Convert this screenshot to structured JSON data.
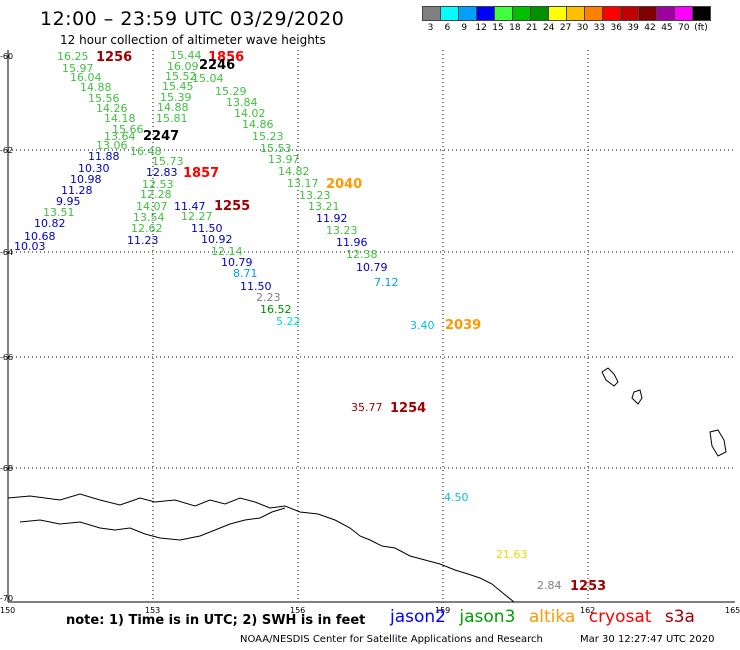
{
  "title": "12:00 – 23:59 UTC 03/29/2020",
  "subtitle": "12 hour collection of altimeter wave heights",
  "legend": {
    "unit": "(ft)",
    "bins": [
      {
        "color": "#808080",
        "label": "3"
      },
      {
        "color": "#00ffff",
        "label": "6"
      },
      {
        "color": "#00a0ff",
        "label": "9"
      },
      {
        "color": "#0000ff",
        "label": "12"
      },
      {
        "color": "#40ff40",
        "label": "15"
      },
      {
        "color": "#00c000",
        "label": "18"
      },
      {
        "color": "#009000",
        "label": "21"
      },
      {
        "color": "#ffff00",
        "label": "24"
      },
      {
        "color": "#ffc000",
        "label": "27"
      },
      {
        "color": "#ff8000",
        "label": "30"
      },
      {
        "color": "#ff0000",
        "label": "33"
      },
      {
        "color": "#c00000",
        "label": "36"
      },
      {
        "color": "#800000",
        "label": "39"
      },
      {
        "color": "#a000a0",
        "label": "42"
      },
      {
        "color": "#ff00ff",
        "label": "45"
      },
      {
        "color": "#000000",
        "label": "70"
      }
    ]
  },
  "axes": {
    "lat_labels": [
      "-60",
      "-62",
      "-64",
      "-66",
      "-68",
      "-70"
    ],
    "lon_labels": [
      "150",
      "153",
      "156",
      "159",
      "162",
      "165"
    ]
  },
  "observations": [
    {
      "v": "16.25",
      "c": "#40c040"
    },
    {
      "v": "15.97",
      "c": "#40c040"
    },
    {
      "v": "16.04",
      "c": "#40c040"
    },
    {
      "v": "14.88",
      "c": "#40c040"
    },
    {
      "v": "15.56",
      "c": "#40c040"
    },
    {
      "v": "14.26",
      "c": "#40c040"
    },
    {
      "v": "14.18",
      "c": "#40c040"
    },
    {
      "v": "15.66",
      "c": "#40c040"
    },
    {
      "v": "13.64",
      "c": "#40c040"
    },
    {
      "v": "13.06",
      "c": "#40c040"
    },
    {
      "v": "11.88",
      "c": "#0000c0"
    },
    {
      "v": "10.30",
      "c": "#0000c0"
    },
    {
      "v": "10.98",
      "c": "#0000c0"
    },
    {
      "v": "11.28",
      "c": "#0000c0"
    },
    {
      "v": "9.95",
      "c": "#0000c0"
    },
    {
      "v": "13.51",
      "c": "#40c040"
    },
    {
      "v": "10.82",
      "c": "#0000c0"
    },
    {
      "v": "10.68",
      "c": "#0000c0"
    },
    {
      "v": "10.03",
      "c": "#0000c0"
    },
    {
      "v": "15.44",
      "c": "#40c040"
    },
    {
      "v": "16.09",
      "c": "#40c040"
    },
    {
      "v": "15.52",
      "c": "#40c040"
    },
    {
      "v": "15.45",
      "c": "#40c040"
    },
    {
      "v": "15.39",
      "c": "#40c040"
    },
    {
      "v": "14.88",
      "c": "#40c040"
    },
    {
      "v": "15.81",
      "c": "#40c040"
    },
    {
      "v": "16.48",
      "c": "#40c040"
    },
    {
      "v": "15.73",
      "c": "#40c040"
    },
    {
      "v": "12.83",
      "c": "#0000c0"
    },
    {
      "v": "12.53",
      "c": "#40c040"
    },
    {
      "v": "12.28",
      "c": "#40c040"
    },
    {
      "v": "14.07",
      "c": "#40c040"
    },
    {
      "v": "11.47",
      "c": "#0000c0"
    },
    {
      "v": "13.54",
      "c": "#40c040"
    },
    {
      "v": "12.27",
      "c": "#40c040"
    },
    {
      "v": "12.62",
      "c": "#40c040"
    },
    {
      "v": "11.50",
      "c": "#0000c0"
    },
    {
      "v": "11.23",
      "c": "#0000c0"
    },
    {
      "v": "10.92",
      "c": "#0000c0"
    },
    {
      "v": "12.14",
      "c": "#40c040"
    },
    {
      "v": "10.79",
      "c": "#0000c0"
    },
    {
      "v": "8.71",
      "c": "#00a0e0"
    },
    {
      "v": "11.50",
      "c": "#0000c0"
    },
    {
      "v": "2.23",
      "c": "#808080"
    },
    {
      "v": "16.52",
      "c": "#009000"
    },
    {
      "v": "5.22",
      "c": "#00e0e0"
    },
    {
      "v": "15.04",
      "c": "#40c040"
    },
    {
      "v": "15.29",
      "c": "#40c040"
    },
    {
      "v": "13.84",
      "c": "#40c040"
    },
    {
      "v": "14.02",
      "c": "#40c040"
    },
    {
      "v": "14.86",
      "c": "#40c040"
    },
    {
      "v": "15.23",
      "c": "#40c040"
    },
    {
      "v": "15.53",
      "c": "#40c040"
    },
    {
      "v": "13.97",
      "c": "#40c040"
    },
    {
      "v": "14.82",
      "c": "#40c040"
    },
    {
      "v": "13.17",
      "c": "#40c040"
    },
    {
      "v": "13.23",
      "c": "#40c040"
    },
    {
      "v": "13.21",
      "c": "#40c040"
    },
    {
      "v": "11.92",
      "c": "#0000c0"
    },
    {
      "v": "13.23",
      "c": "#40c040"
    },
    {
      "v": "11.96",
      "c": "#0000c0"
    },
    {
      "v": "12.38",
      "c": "#40c040"
    },
    {
      "v": "10.79",
      "c": "#0000c0"
    },
    {
      "v": "7.12",
      "c": "#00a0e0"
    },
    {
      "v": "3.40",
      "c": "#00c0e0"
    },
    {
      "v": "35.77",
      "c": "#a00000"
    },
    {
      "v": "4.50",
      "c": "#00c0e0"
    },
    {
      "v": "21.63",
      "c": "#e0e000"
    },
    {
      "v": "2.84",
      "c": "#808080"
    }
  ],
  "time_labels": [
    {
      "v": "1256",
      "c": "#a00000"
    },
    {
      "v": "1856",
      "c": "#ff0000"
    },
    {
      "v": "2246",
      "c": "#000000"
    },
    {
      "v": "2247",
      "c": "#000000"
    },
    {
      "v": "1857",
      "c": "#ff0000"
    },
    {
      "v": "1255",
      "c": "#a00000"
    },
    {
      "v": "2040",
      "c": "#ff9900"
    },
    {
      "v": "2039",
      "c": "#ff9900"
    },
    {
      "v": "1254",
      "c": "#a00000"
    },
    {
      "v": "1253",
      "c": "#a00000"
    }
  ],
  "note": "note:  1) Time is in UTC;  2) SWH is in feet",
  "satellites": [
    {
      "name": "jason2",
      "color": "#0000ff"
    },
    {
      "name": "jason3",
      "color": "#00a000"
    },
    {
      "name": "altika",
      "color": "#ff9900"
    },
    {
      "name": "cryosat",
      "color": "#ff0000"
    },
    {
      "name": "s3a",
      "color": "#a00000"
    }
  ],
  "credit": "NOAA/NESDIS Center for Satellite Applications and Research",
  "timestamp": "Mar 30 12:27:47 UTC 2020"
}
